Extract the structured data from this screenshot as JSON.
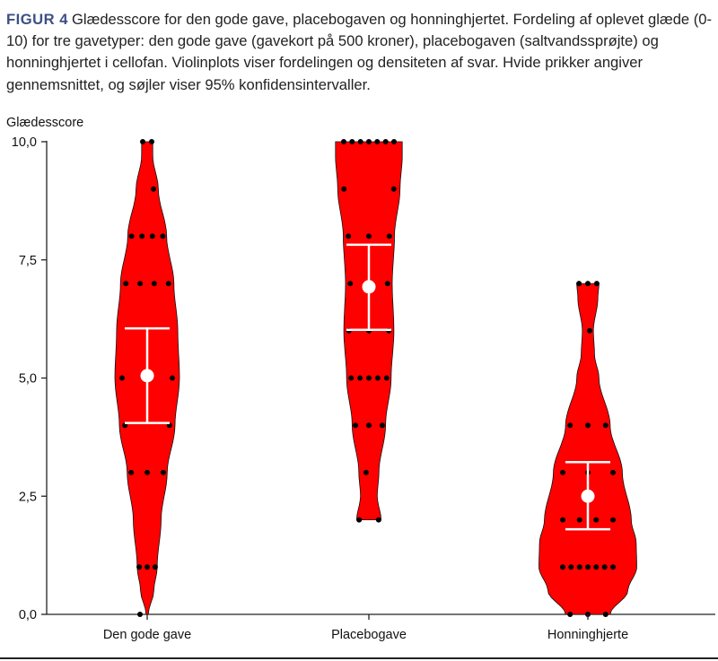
{
  "figure": {
    "label": "FIGUR 4",
    "caption": "Glædesscore for den gode gave, placebogaven og honninghjertet. Fordeling af oplevet glæde (0-10) for tre gavetyper: den gode gave (gavekort på 500 kroner), placebogaven (saltvandssprøjte) og honninghjertet i cellofan. Violinplots viser fordelingen og densiteten af svar. Hvide prikker angiver gennemsnittet, og søjler viser 95% konfidensintervaller."
  },
  "colors": {
    "violin": "#ff0000",
    "point": "#000000",
    "mean": "#ffffff",
    "axis": "#222222"
  },
  "chart_data": {
    "type": "violin",
    "ylabel": "Glædesscore",
    "ylim": [
      0,
      10
    ],
    "yticks": [
      0,
      2.5,
      5,
      7.5,
      10
    ],
    "ytick_labels": [
      "0,0",
      "2,5",
      "5,0",
      "7,5",
      "10,0"
    ],
    "categories": [
      "Den gode gave",
      "Placebogave",
      "Honninghjerte"
    ],
    "series": [
      {
        "category": "Den gode gave",
        "mean": 5.05,
        "ci_low": 4.05,
        "ci_high": 6.05,
        "range": [
          0,
          10
        ],
        "points": [
          10,
          10,
          9,
          8,
          8,
          8,
          8,
          7,
          7,
          7,
          7,
          5,
          5,
          4,
          4,
          3,
          3,
          3,
          1,
          1,
          1,
          0
        ],
        "density": [
          [
            0,
            0.02
          ],
          [
            0.5,
            0.12
          ],
          [
            1,
            0.18
          ],
          [
            2,
            0.25
          ],
          [
            3,
            0.36
          ],
          [
            4,
            0.5
          ],
          [
            5,
            0.58
          ],
          [
            6,
            0.55
          ],
          [
            7,
            0.48
          ],
          [
            8,
            0.35
          ],
          [
            9,
            0.2
          ],
          [
            9.7,
            0.1
          ],
          [
            10,
            0.1
          ]
        ]
      },
      {
        "category": "Placebogave",
        "mean": 6.93,
        "ci_low": 6.02,
        "ci_high": 7.82,
        "range": [
          2,
          10
        ],
        "points": [
          10,
          10,
          10,
          10,
          10,
          10,
          10,
          9,
          9,
          8,
          8,
          8,
          7,
          7,
          6,
          6,
          6,
          5,
          5,
          5,
          5,
          5,
          4,
          4,
          4,
          3,
          2,
          2
        ],
        "density": [
          [
            2,
            0.22
          ],
          [
            2.5,
            0.15
          ],
          [
            3,
            0.18
          ],
          [
            4,
            0.3
          ],
          [
            5,
            0.4
          ],
          [
            6,
            0.45
          ],
          [
            7,
            0.42
          ],
          [
            8,
            0.46
          ],
          [
            9,
            0.56
          ],
          [
            9.7,
            0.6
          ],
          [
            10,
            0.6
          ]
        ]
      },
      {
        "category": "Honninghjerte",
        "mean": 2.5,
        "ci_low": 1.8,
        "ci_high": 3.22,
        "range": [
          0,
          7
        ],
        "points": [
          7,
          7,
          7,
          6,
          4,
          4,
          4,
          3,
          3,
          3,
          2,
          2,
          2,
          2,
          1,
          1,
          1,
          1,
          1,
          1,
          1,
          0,
          0,
          0
        ],
        "density": [
          [
            0,
            0.4
          ],
          [
            0.5,
            0.72
          ],
          [
            1,
            0.88
          ],
          [
            1.5,
            0.87
          ],
          [
            2,
            0.78
          ],
          [
            3,
            0.62
          ],
          [
            4,
            0.4
          ],
          [
            5,
            0.2
          ],
          [
            5.5,
            0.12
          ],
          [
            6,
            0.1
          ],
          [
            6.7,
            0.18
          ],
          [
            7,
            0.2
          ]
        ]
      }
    ]
  }
}
